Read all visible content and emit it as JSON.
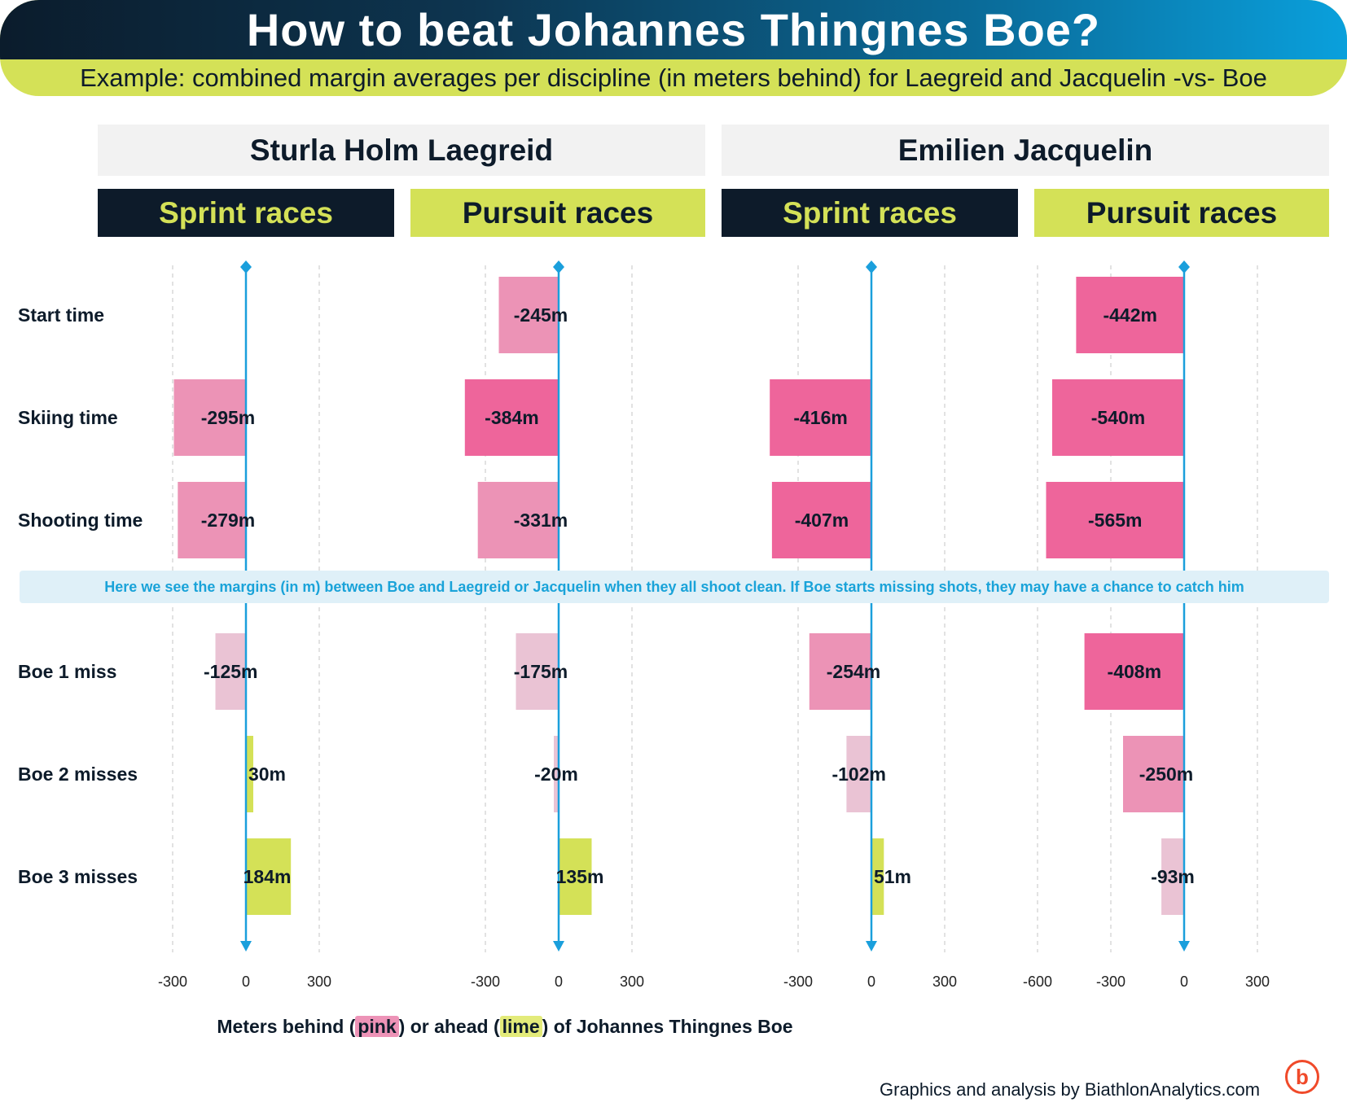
{
  "header": {
    "title": "How to beat Johannes Thingnes Boe?",
    "subtitle": "Example: combined margin averages per discipline (in meters behind) for Laegreid and Jacquelin -vs- Boe"
  },
  "athletes": [
    "Sturla Holm Laegreid",
    "Emilien Jacquelin"
  ],
  "disciplines": [
    "Sprint races",
    "Pursuit races",
    "Sprint races",
    "Pursuit races"
  ],
  "rows": [
    "Start time",
    "Skiing time",
    "Shooting time",
    "Boe 1 miss",
    "Boe 2 misses",
    "Boe 3 misses"
  ],
  "note": "Here we see the margins (in m) between Boe and Laegreid or Jacquelin when they all shoot clean. If Boe starts missing shots, they may have a chance to catch him",
  "legend": {
    "prefix": "Meters behind (",
    "pink": "pink",
    "middle": ") or ahead (",
    "lime": "lime",
    "suffix": ") of Johannes Thingnes Boe"
  },
  "credit": "Graphics and analysis by BiathlonAnalytics.com",
  "logo_letter": "b",
  "colors": {
    "dark": "#0d1b2a",
    "lime": "#d4e157",
    "pink_strong": "#ee659b",
    "pink_mid": "#ec93b6",
    "pink_light": "#eac3d4",
    "axis": "#1a9fdc"
  },
  "chart_data": [
    {
      "type": "bar",
      "orientation": "horizontal",
      "athlete": "Sturla Holm Laegreid",
      "discipline": "Sprint races",
      "categories": [
        "Start time",
        "Skiing time",
        "Shooting time",
        "Boe 1 miss",
        "Boe 2 misses",
        "Boe 3 misses"
      ],
      "values": [
        null,
        -295,
        -279,
        -125,
        30,
        184
      ],
      "labels": [
        "",
        "-295m",
        "-279m",
        "-125m",
        "30m",
        "184m"
      ],
      "xticks": [
        -300,
        0,
        300
      ],
      "xlim": [
        -300,
        300
      ]
    },
    {
      "type": "bar",
      "orientation": "horizontal",
      "athlete": "Sturla Holm Laegreid",
      "discipline": "Pursuit races",
      "categories": [
        "Start time",
        "Skiing time",
        "Shooting time",
        "Boe 1 miss",
        "Boe 2 misses",
        "Boe 3 misses"
      ],
      "values": [
        -245,
        -384,
        -331,
        -175,
        -20,
        135
      ],
      "labels": [
        "-245m",
        "-384m",
        "-331m",
        "-175m",
        "-20m",
        "135m"
      ],
      "xticks": [
        -300,
        0,
        300
      ],
      "xlim": [
        -300,
        300
      ]
    },
    {
      "type": "bar",
      "orientation": "horizontal",
      "athlete": "Emilien Jacquelin",
      "discipline": "Sprint races",
      "categories": [
        "Start time",
        "Skiing time",
        "Shooting time",
        "Boe 1 miss",
        "Boe 2 misses",
        "Boe 3 misses"
      ],
      "values": [
        null,
        -416,
        -407,
        -254,
        -102,
        51
      ],
      "labels": [
        "",
        "-416m",
        "-407m",
        "-254m",
        "-102m",
        "51m"
      ],
      "xticks": [
        -300,
        0,
        300
      ],
      "xlim": [
        -300,
        300
      ]
    },
    {
      "type": "bar",
      "orientation": "horizontal",
      "athlete": "Emilien Jacquelin",
      "discipline": "Pursuit races",
      "categories": [
        "Start time",
        "Skiing time",
        "Shooting time",
        "Boe 1 miss",
        "Boe 2 misses",
        "Boe 3 misses"
      ],
      "values": [
        -442,
        -540,
        -565,
        -408,
        -250,
        -93
      ],
      "labels": [
        "-442m",
        "-540m",
        "-565m",
        "-408m",
        "-250m",
        "-93m"
      ],
      "xticks": [
        -600,
        -300,
        0,
        300
      ],
      "xlim": [
        -600,
        300
      ]
    }
  ]
}
